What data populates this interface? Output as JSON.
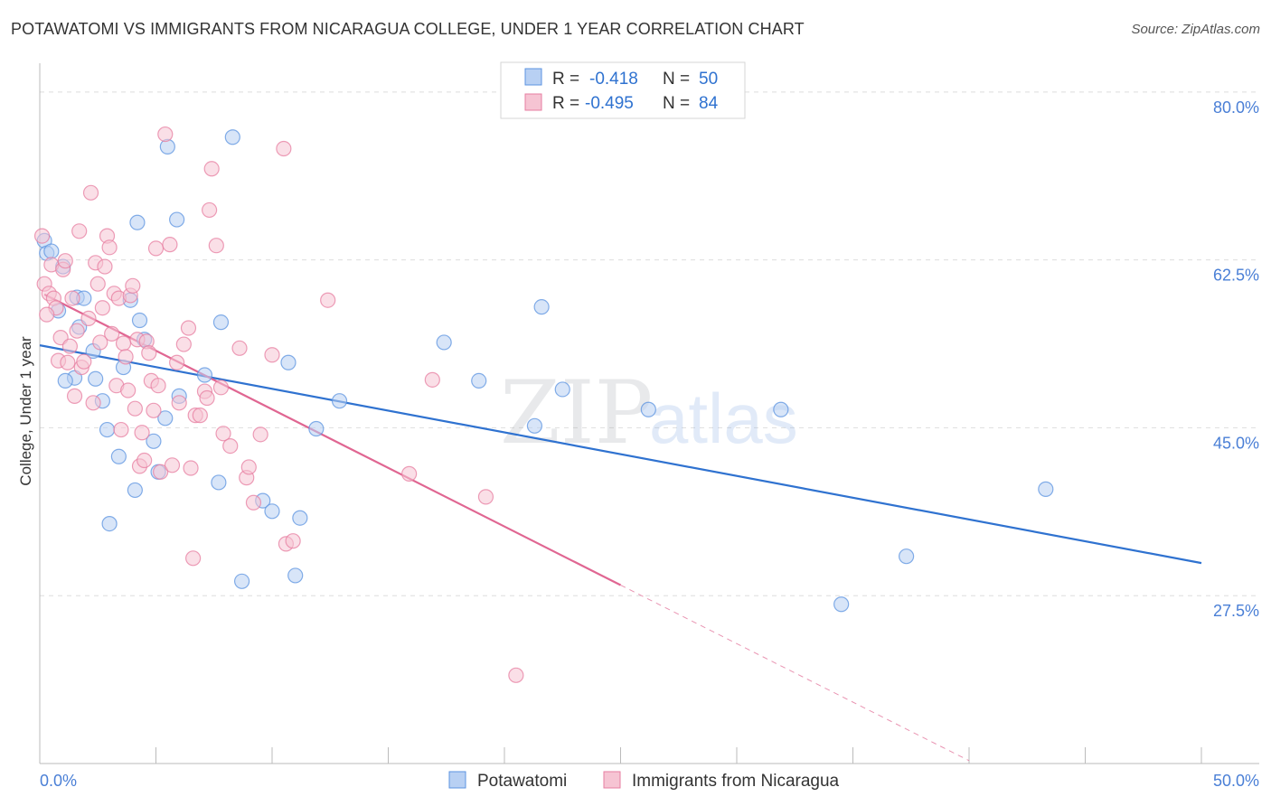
{
  "title": "POTAWATOMI VS IMMIGRANTS FROM NICARAGUA COLLEGE, UNDER 1 YEAR CORRELATION CHART",
  "source": "Source: ZipAtlas.com",
  "watermark": {
    "zip": "ZIP",
    "atlas": "atlas"
  },
  "colors": {
    "blue": "#5b93e0",
    "blue_fill": "#b8d0f3",
    "blue_line": "#2f72d0",
    "pink": "#e77ea0",
    "pink_fill": "#f6c4d3",
    "pink_line": "#e06692",
    "axis_text": "#4a7fd6",
    "grid": "#dddddd"
  },
  "legend": {
    "blue": {
      "r_label": "R =",
      "r_value": "-0.418",
      "n_label": "N =",
      "n_value": "50"
    },
    "pink": {
      "r_label": "R =",
      "r_value": "-0.495",
      "n_label": "N =",
      "n_value": "84"
    }
  },
  "chart_data": {
    "type": "scatter",
    "title": "POTAWATOMI VS IMMIGRANTS FROM NICARAGUA COLLEGE, UNDER 1 YEAR CORRELATION CHART",
    "xlabel": "",
    "ylabel": "College, Under 1 year",
    "xlim": [
      0,
      50
    ],
    "ylim": [
      10,
      83
    ],
    "x_tick_labels": [
      "0.0%",
      "50.0%"
    ],
    "y_ticks": [
      27.5,
      45.0,
      62.5,
      80.0
    ],
    "y_tick_labels": [
      "27.5%",
      "45.0%",
      "62.5%",
      "80.0%"
    ],
    "grid": true,
    "legend_position": "top-center",
    "series": [
      {
        "name": "Potawatomi",
        "color": "#5b93e0",
        "r": -0.418,
        "n": 50,
        "trend": {
          "x": [
            0,
            50
          ],
          "y": [
            53.6,
            30.9
          ]
        },
        "points": [
          [
            0.2,
            64.5
          ],
          [
            0.3,
            63.2
          ],
          [
            0.5,
            63.4
          ],
          [
            1.0,
            61.8
          ],
          [
            0.8,
            57.2
          ],
          [
            1.6,
            58.6
          ],
          [
            1.9,
            58.5
          ],
          [
            1.7,
            55.5
          ],
          [
            1.5,
            50.2
          ],
          [
            1.1,
            49.9
          ],
          [
            2.3,
            53.0
          ],
          [
            2.4,
            50.1
          ],
          [
            2.7,
            47.8
          ],
          [
            2.9,
            44.8
          ],
          [
            3.0,
            35.0
          ],
          [
            3.4,
            42.0
          ],
          [
            3.6,
            51.3
          ],
          [
            3.9,
            58.3
          ],
          [
            4.1,
            38.5
          ],
          [
            4.3,
            56.2
          ],
          [
            4.5,
            54.2
          ],
          [
            4.9,
            43.6
          ],
          [
            5.1,
            40.4
          ],
          [
            5.4,
            46.0
          ],
          [
            5.5,
            74.3
          ],
          [
            4.2,
            66.4
          ],
          [
            5.9,
            66.7
          ],
          [
            6.0,
            48.3
          ],
          [
            7.1,
            50.5
          ],
          [
            7.7,
            39.3
          ],
          [
            7.8,
            56.0
          ],
          [
            8.3,
            75.3
          ],
          [
            8.7,
            29.0
          ],
          [
            9.6,
            37.4
          ],
          [
            10.0,
            36.3
          ],
          [
            10.7,
            51.8
          ],
          [
            11.0,
            29.6
          ],
          [
            11.2,
            35.6
          ],
          [
            11.9,
            44.9
          ],
          [
            12.9,
            47.8
          ],
          [
            17.4,
            53.9
          ],
          [
            18.9,
            49.9
          ],
          [
            21.3,
            45.2
          ],
          [
            21.6,
            57.6
          ],
          [
            22.5,
            49.0
          ],
          [
            26.2,
            46.9
          ],
          [
            31.9,
            46.9
          ],
          [
            34.5,
            26.6
          ],
          [
            37.3,
            31.6
          ],
          [
            43.3,
            38.6
          ]
        ]
      },
      {
        "name": "Immigrants from Nicaragua",
        "color": "#e77ea0",
        "r": -0.495,
        "n": 84,
        "trend": {
          "x": [
            0.2,
            25.0
          ],
          "y": [
            58.9,
            28.6
          ]
        },
        "trend_dashed": {
          "x": [
            25.0,
            40.0
          ],
          "y": [
            28.6,
            10.3
          ]
        },
        "points": [
          [
            0.1,
            65.0
          ],
          [
            0.2,
            60.0
          ],
          [
            0.4,
            59.0
          ],
          [
            0.5,
            62.0
          ],
          [
            0.6,
            58.5
          ],
          [
            0.7,
            57.5
          ],
          [
            0.9,
            54.4
          ],
          [
            0.8,
            52.0
          ],
          [
            1.0,
            61.5
          ],
          [
            1.1,
            62.4
          ],
          [
            1.2,
            51.8
          ],
          [
            1.4,
            58.5
          ],
          [
            1.3,
            53.5
          ],
          [
            1.6,
            55.1
          ],
          [
            1.8,
            51.3
          ],
          [
            1.9,
            51.9
          ],
          [
            2.1,
            56.4
          ],
          [
            1.7,
            65.5
          ],
          [
            2.2,
            69.5
          ],
          [
            2.4,
            62.2
          ],
          [
            2.5,
            60.0
          ],
          [
            2.6,
            53.9
          ],
          [
            2.7,
            57.5
          ],
          [
            2.8,
            61.8
          ],
          [
            2.9,
            65.0
          ],
          [
            3.0,
            63.8
          ],
          [
            3.1,
            54.8
          ],
          [
            3.2,
            59.0
          ],
          [
            3.3,
            49.4
          ],
          [
            3.4,
            58.5
          ],
          [
            3.6,
            53.8
          ],
          [
            3.7,
            52.4
          ],
          [
            3.8,
            48.9
          ],
          [
            3.9,
            58.8
          ],
          [
            4.0,
            59.8
          ],
          [
            4.2,
            54.2
          ],
          [
            4.3,
            41.0
          ],
          [
            4.4,
            44.5
          ],
          [
            4.5,
            41.6
          ],
          [
            4.6,
            54.0
          ],
          [
            4.7,
            52.8
          ],
          [
            4.8,
            49.9
          ],
          [
            4.9,
            46.8
          ],
          [
            5.0,
            63.7
          ],
          [
            5.1,
            49.4
          ],
          [
            5.2,
            40.4
          ],
          [
            5.4,
            75.6
          ],
          [
            5.6,
            64.1
          ],
          [
            5.7,
            41.1
          ],
          [
            5.9,
            51.8
          ],
          [
            6.0,
            47.6
          ],
          [
            6.2,
            53.7
          ],
          [
            6.4,
            55.4
          ],
          [
            6.5,
            40.8
          ],
          [
            6.6,
            31.4
          ],
          [
            6.7,
            46.3
          ],
          [
            6.9,
            46.3
          ],
          [
            7.1,
            48.8
          ],
          [
            7.2,
            48.1
          ],
          [
            7.3,
            67.7
          ],
          [
            7.4,
            72.0
          ],
          [
            7.6,
            64.0
          ],
          [
            7.9,
            44.4
          ],
          [
            8.2,
            43.1
          ],
          [
            8.6,
            53.3
          ],
          [
            8.9,
            39.8
          ],
          [
            9.2,
            37.2
          ],
          [
            9.5,
            44.3
          ],
          [
            10.0,
            52.6
          ],
          [
            10.5,
            74.1
          ],
          [
            10.6,
            32.9
          ],
          [
            10.9,
            33.2
          ],
          [
            12.4,
            58.3
          ],
          [
            15.9,
            40.2
          ],
          [
            16.9,
            50.0
          ],
          [
            19.2,
            37.8
          ],
          [
            20.5,
            19.2
          ],
          [
            1.5,
            48.3
          ],
          [
            2.3,
            47.6
          ],
          [
            3.5,
            44.8
          ],
          [
            4.1,
            47.0
          ],
          [
            0.3,
            56.8
          ],
          [
            7.8,
            49.2
          ],
          [
            9.0,
            40.9
          ]
        ]
      }
    ]
  },
  "bottom_legend": {
    "blue_label": "Potawatomi",
    "pink_label": "Immigrants from Nicaragua"
  }
}
